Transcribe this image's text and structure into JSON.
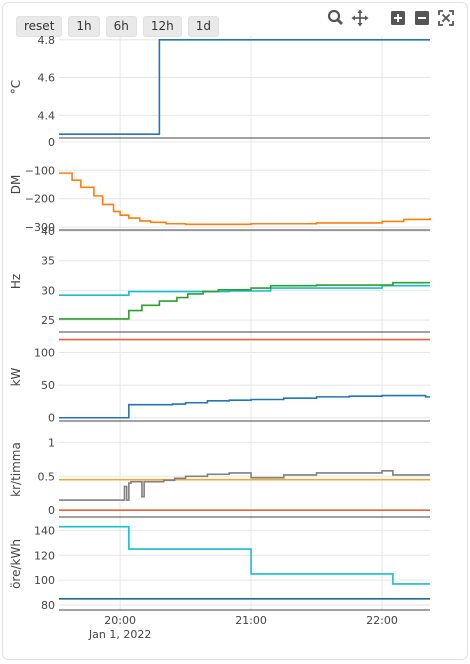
{
  "toolbar": {
    "reset": "reset",
    "r1h": "1h",
    "r6h": "6h",
    "r12h": "12h",
    "r1d": "1d"
  },
  "modebar_icons": [
    "zoom-icon",
    "pan-icon",
    "zoom-in-icon",
    "zoom-out-icon",
    "autoscale-icon"
  ],
  "chart_data": {
    "type": "line",
    "x_range": [
      "19:32",
      "22:22"
    ],
    "x_ticks": [
      "20:00",
      "21:00",
      "22:00"
    ],
    "x_date_label": "Jan 1, 2022",
    "grid": true,
    "panels": [
      {
        "ylabel": "°C",
        "ylim": [
          4.28,
          4.82
        ],
        "yticks": [
          4.4,
          4.6,
          4.8
        ],
        "ytick_labels": [
          "4.4",
          "4.6",
          "4.8"
        ],
        "series": [
          {
            "color": "#1f77b4",
            "shape": "hv",
            "x": [
              "19:32",
              "20:18",
              "22:22"
            ],
            "y": [
              4.3,
              4.8,
              4.8
            ]
          }
        ]
      },
      {
        "ylabel": "DM",
        "ylim": [
          -310,
          10
        ],
        "yticks": [
          0,
          -100,
          -200,
          -300
        ],
        "ytick_labels": [
          "0",
          "−100",
          "−200",
          "−300"
        ],
        "series": [
          {
            "color": "#ff7f0e",
            "shape": "hv",
            "x": [
              "19:32",
              "19:38",
              "19:42",
              "19:48",
              "19:52",
              "19:57",
              "20:00",
              "20:04",
              "20:09",
              "20:14",
              "20:21",
              "20:30",
              "21:00",
              "21:30",
              "22:00",
              "22:10",
              "22:22"
            ],
            "y": [
              -110,
              -135,
              -160,
              -190,
              -220,
              -245,
              -258,
              -268,
              -278,
              -283,
              -288,
              -290,
              -288,
              -285,
              -280,
              -273,
              -268
            ]
          }
        ]
      },
      {
        "ylabel": "Hz",
        "ylim": [
          23,
          40
        ],
        "yticks": [
          25,
          30,
          35,
          40
        ],
        "ytick_labels": [
          "25",
          "30",
          "35",
          "40"
        ],
        "series": [
          {
            "color": "#17becf",
            "shape": "hv",
            "x": [
              "19:32",
              "20:04",
              "20:50",
              "21:09",
              "22:00",
              "22:22"
            ],
            "y": [
              29.2,
              29.8,
              29.9,
              30.4,
              30.8,
              30.8
            ]
          },
          {
            "color": "#2ca02c",
            "shape": "hv",
            "x": [
              "19:32",
              "20:04",
              "20:10",
              "20:18",
              "20:26",
              "20:31",
              "20:38",
              "20:45",
              "21:00",
              "21:09",
              "21:30",
              "22:05",
              "22:22"
            ],
            "y": [
              25.2,
              26.6,
              27.5,
              28.2,
              28.8,
              29.4,
              29.8,
              30.1,
              30.4,
              30.8,
              30.9,
              31.3,
              31.3
            ]
          }
        ]
      },
      {
        "ylabel": "kW",
        "ylim": [
          -5,
          130
        ],
        "yticks": [
          0,
          50,
          100
        ],
        "ytick_labels": [
          "0",
          "50",
          "100"
        ],
        "series": [
          {
            "color": "#e5633f",
            "shape": "hv",
            "x": [
              "19:32",
              "22:22"
            ],
            "y": [
              120,
              120
            ]
          },
          {
            "color": "#1f77b4",
            "shape": "hv",
            "x": [
              "19:32",
              "20:04",
              "20:24",
              "20:30",
              "20:40",
              "20:50",
              "21:00",
              "21:15",
              "21:30",
              "21:45",
              "22:00",
              "22:20",
              "22:22"
            ],
            "y": [
              0,
              20,
              21,
              23,
              26,
              27,
              28,
              30,
              32,
              33,
              34,
              32,
              32
            ]
          }
        ]
      },
      {
        "ylabel": "kr/timma",
        "ylim": [
          -0.1,
          1.3
        ],
        "yticks": [
          0,
          0.5,
          1
        ],
        "ytick_labels": [
          "0",
          "0.5",
          "1"
        ],
        "series": [
          {
            "color": "#e5633f",
            "shape": "hv",
            "x": [
              "19:32",
              "22:22"
            ],
            "y": [
              0,
              0
            ]
          },
          {
            "color": "#f0a830",
            "shape": "hv",
            "x": [
              "19:32",
              "22:22"
            ],
            "y": [
              0.45,
              0.45
            ]
          },
          {
            "color": "#808080",
            "shape": "hv",
            "x": [
              "19:32",
              "20:02",
              "20:03",
              "20:04",
              "20:05",
              "20:10",
              "20:11",
              "20:12",
              "20:20",
              "20:25",
              "20:30",
              "20:40",
              "20:50",
              "21:00",
              "21:15",
              "21:30",
              "22:00",
              "22:05",
              "22:22"
            ],
            "y": [
              0.15,
              0.35,
              0.15,
              0.4,
              0.42,
              0.2,
              0.42,
              0.42,
              0.44,
              0.47,
              0.5,
              0.53,
              0.55,
              0.48,
              0.52,
              0.55,
              0.58,
              0.52,
              0.52
            ]
          }
        ]
      },
      {
        "ylabel": "öre/kWh",
        "ylim": [
          76,
          150
        ],
        "yticks": [
          80,
          100,
          120,
          140
        ],
        "ytick_labels": [
          "80",
          "100",
          "120",
          "140"
        ],
        "series": [
          {
            "color": "#17becf",
            "shape": "hv",
            "x": [
              "19:32",
              "20:04",
              "21:00",
              "22:05",
              "22:22"
            ],
            "y": [
              143,
              125,
              105,
              97,
              97
            ]
          },
          {
            "color": "#1f6d8c",
            "shape": "hv",
            "x": [
              "19:32",
              "22:22"
            ],
            "y": [
              85,
              85
            ]
          }
        ]
      }
    ]
  }
}
